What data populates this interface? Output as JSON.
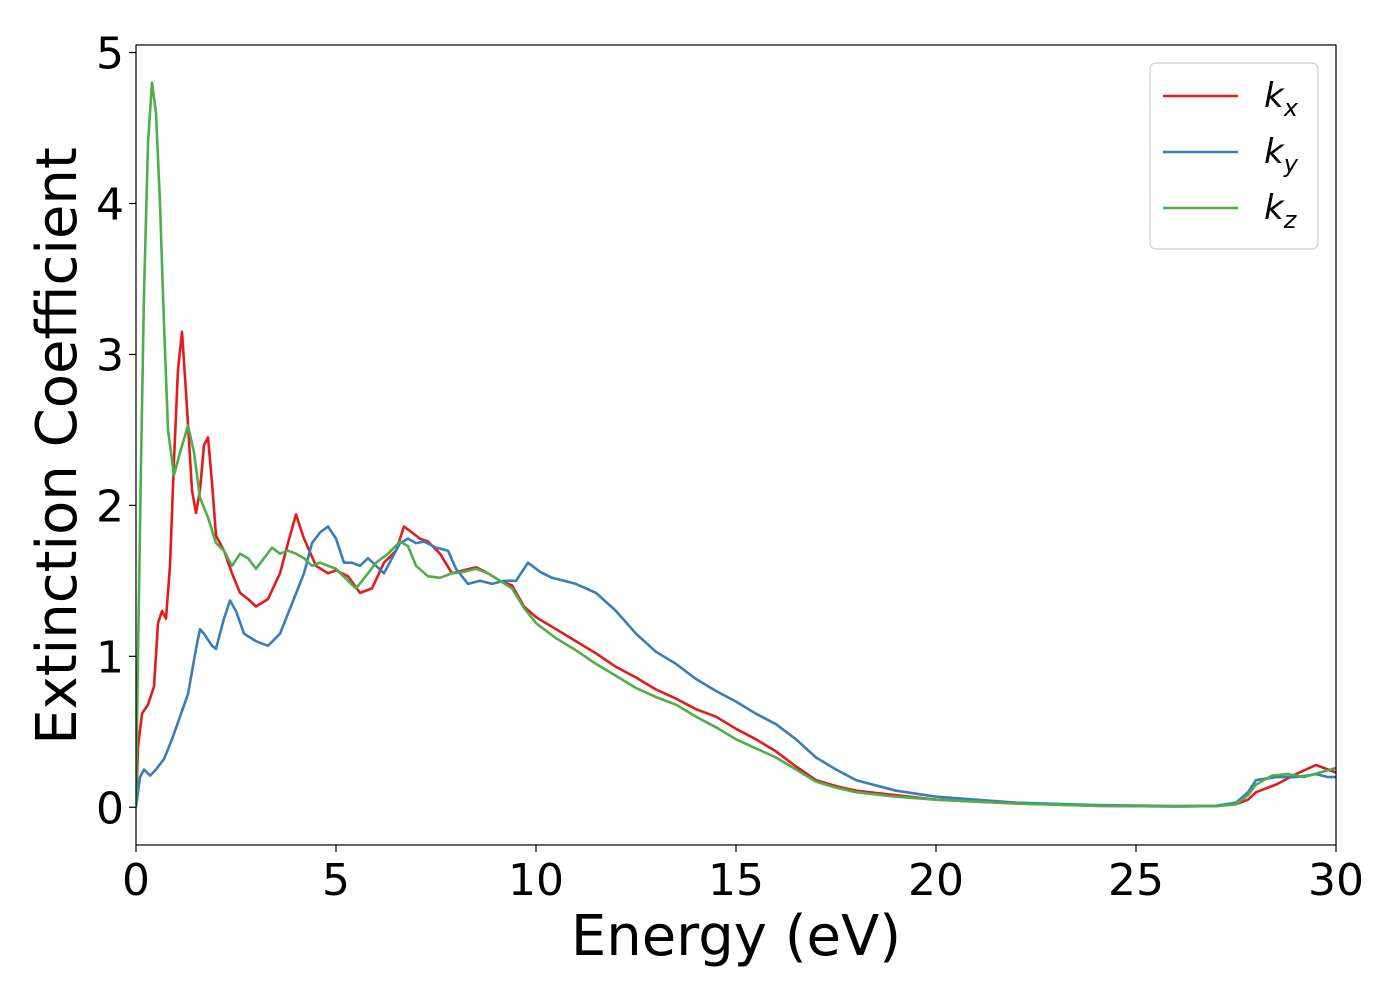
{
  "chart_data": {
    "type": "line",
    "title": "",
    "xlabel": "Energy (eV)",
    "ylabel": "Extinction Coefficient",
    "xlim": [
      0,
      30
    ],
    "ylim": [
      -0.25,
      5.05
    ],
    "xticks": [
      0,
      5,
      10,
      15,
      20,
      25,
      30
    ],
    "yticks": [
      0,
      1,
      2,
      3,
      4,
      5
    ],
    "grid": false,
    "legend_position": "top-right",
    "series": [
      {
        "name": "k",
        "subscript": "x",
        "color": "#e41a1c",
        "points": [
          [
            0,
            0
          ],
          [
            0.05,
            0.4
          ],
          [
            0.15,
            0.62
          ],
          [
            0.3,
            0.68
          ],
          [
            0.45,
            0.8
          ],
          [
            0.55,
            1.22
          ],
          [
            0.65,
            1.3
          ],
          [
            0.75,
            1.25
          ],
          [
            0.85,
            1.6
          ],
          [
            0.95,
            2.3
          ],
          [
            1.05,
            2.9
          ],
          [
            1.15,
            3.15
          ],
          [
            1.25,
            2.75
          ],
          [
            1.4,
            2.1
          ],
          [
            1.5,
            1.95
          ],
          [
            1.6,
            2.1
          ],
          [
            1.7,
            2.4
          ],
          [
            1.8,
            2.45
          ],
          [
            1.9,
            2.15
          ],
          [
            2.0,
            1.8
          ],
          [
            2.2,
            1.7
          ],
          [
            2.4,
            1.55
          ],
          [
            2.6,
            1.42
          ],
          [
            2.8,
            1.38
          ],
          [
            3.0,
            1.33
          ],
          [
            3.3,
            1.38
          ],
          [
            3.6,
            1.55
          ],
          [
            3.8,
            1.75
          ],
          [
            4.0,
            1.94
          ],
          [
            4.2,
            1.78
          ],
          [
            4.5,
            1.6
          ],
          [
            4.8,
            1.55
          ],
          [
            5.0,
            1.57
          ],
          [
            5.3,
            1.53
          ],
          [
            5.6,
            1.42
          ],
          [
            5.9,
            1.45
          ],
          [
            6.2,
            1.62
          ],
          [
            6.5,
            1.7
          ],
          [
            6.7,
            1.86
          ],
          [
            6.9,
            1.82
          ],
          [
            7.1,
            1.78
          ],
          [
            7.3,
            1.76
          ],
          [
            7.6,
            1.68
          ],
          [
            7.9,
            1.55
          ],
          [
            8.2,
            1.57
          ],
          [
            8.5,
            1.59
          ],
          [
            8.8,
            1.55
          ],
          [
            9.1,
            1.5
          ],
          [
            9.4,
            1.47
          ],
          [
            9.7,
            1.33
          ],
          [
            10.0,
            1.26
          ],
          [
            10.5,
            1.18
          ],
          [
            11.0,
            1.1
          ],
          [
            11.5,
            1.02
          ],
          [
            12.0,
            0.93
          ],
          [
            12.5,
            0.86
          ],
          [
            13.0,
            0.78
          ],
          [
            13.5,
            0.72
          ],
          [
            14.0,
            0.65
          ],
          [
            14.5,
            0.6
          ],
          [
            15.0,
            0.52
          ],
          [
            15.5,
            0.45
          ],
          [
            16.0,
            0.37
          ],
          [
            16.5,
            0.27
          ],
          [
            17.0,
            0.18
          ],
          [
            17.5,
            0.14
          ],
          [
            18.0,
            0.11
          ],
          [
            19.0,
            0.08
          ],
          [
            20.0,
            0.05
          ],
          [
            22.0,
            0.025
          ],
          [
            24.0,
            0.01
          ],
          [
            26.0,
            0.005
          ],
          [
            27.0,
            0.008
          ],
          [
            27.5,
            0.02
          ],
          [
            27.8,
            0.05
          ],
          [
            28.0,
            0.1
          ],
          [
            28.5,
            0.15
          ],
          [
            29.0,
            0.22
          ],
          [
            29.5,
            0.28
          ],
          [
            29.8,
            0.25
          ],
          [
            30.0,
            0.23
          ]
        ]
      },
      {
        "name": "k",
        "subscript": "y",
        "color": "#377eb8",
        "points": [
          [
            0,
            0
          ],
          [
            0.1,
            0.2
          ],
          [
            0.2,
            0.25
          ],
          [
            0.35,
            0.21
          ],
          [
            0.5,
            0.25
          ],
          [
            0.7,
            0.32
          ],
          [
            0.9,
            0.45
          ],
          [
            1.1,
            0.6
          ],
          [
            1.3,
            0.75
          ],
          [
            1.5,
            1.05
          ],
          [
            1.6,
            1.18
          ],
          [
            1.7,
            1.15
          ],
          [
            1.9,
            1.07
          ],
          [
            2.0,
            1.05
          ],
          [
            2.2,
            1.25
          ],
          [
            2.35,
            1.37
          ],
          [
            2.5,
            1.3
          ],
          [
            2.7,
            1.15
          ],
          [
            3.0,
            1.1
          ],
          [
            3.3,
            1.07
          ],
          [
            3.6,
            1.15
          ],
          [
            3.9,
            1.35
          ],
          [
            4.2,
            1.55
          ],
          [
            4.4,
            1.75
          ],
          [
            4.6,
            1.82
          ],
          [
            4.8,
            1.86
          ],
          [
            5.0,
            1.78
          ],
          [
            5.2,
            1.62
          ],
          [
            5.4,
            1.62
          ],
          [
            5.6,
            1.6
          ],
          [
            5.8,
            1.65
          ],
          [
            6.0,
            1.6
          ],
          [
            6.2,
            1.55
          ],
          [
            6.4,
            1.65
          ],
          [
            6.6,
            1.75
          ],
          [
            6.8,
            1.78
          ],
          [
            7.0,
            1.75
          ],
          [
            7.2,
            1.76
          ],
          [
            7.5,
            1.72
          ],
          [
            7.8,
            1.7
          ],
          [
            8.0,
            1.58
          ],
          [
            8.3,
            1.48
          ],
          [
            8.6,
            1.5
          ],
          [
            8.9,
            1.48
          ],
          [
            9.2,
            1.5
          ],
          [
            9.5,
            1.5
          ],
          [
            9.8,
            1.62
          ],
          [
            10.1,
            1.56
          ],
          [
            10.4,
            1.52
          ],
          [
            10.7,
            1.5
          ],
          [
            11.0,
            1.48
          ],
          [
            11.5,
            1.42
          ],
          [
            12.0,
            1.3
          ],
          [
            12.5,
            1.15
          ],
          [
            13.0,
            1.03
          ],
          [
            13.5,
            0.95
          ],
          [
            14.0,
            0.85
          ],
          [
            14.5,
            0.77
          ],
          [
            15.0,
            0.7
          ],
          [
            15.5,
            0.62
          ],
          [
            16.0,
            0.55
          ],
          [
            16.5,
            0.45
          ],
          [
            17.0,
            0.33
          ],
          [
            17.5,
            0.25
          ],
          [
            18.0,
            0.18
          ],
          [
            19.0,
            0.11
          ],
          [
            20.0,
            0.07
          ],
          [
            22.0,
            0.03
          ],
          [
            24.0,
            0.015
          ],
          [
            26.0,
            0.008
          ],
          [
            27.0,
            0.01
          ],
          [
            27.5,
            0.03
          ],
          [
            27.8,
            0.1
          ],
          [
            28.0,
            0.18
          ],
          [
            28.5,
            0.2
          ],
          [
            29.0,
            0.2
          ],
          [
            29.5,
            0.22
          ],
          [
            29.8,
            0.2
          ],
          [
            30.0,
            0.2
          ]
        ]
      },
      {
        "name": "k",
        "subscript": "z",
        "color": "#4daf4a",
        "points": [
          [
            0,
            0
          ],
          [
            0.05,
            1.0
          ],
          [
            0.12,
            2.2
          ],
          [
            0.2,
            3.4
          ],
          [
            0.3,
            4.4
          ],
          [
            0.4,
            4.8
          ],
          [
            0.5,
            4.6
          ],
          [
            0.6,
            4.0
          ],
          [
            0.7,
            3.2
          ],
          [
            0.8,
            2.5
          ],
          [
            0.95,
            2.2
          ],
          [
            1.1,
            2.35
          ],
          [
            1.3,
            2.53
          ],
          [
            1.45,
            2.35
          ],
          [
            1.6,
            2.05
          ],
          [
            1.8,
            1.92
          ],
          [
            2.0,
            1.75
          ],
          [
            2.2,
            1.7
          ],
          [
            2.4,
            1.6
          ],
          [
            2.6,
            1.68
          ],
          [
            2.8,
            1.65
          ],
          [
            3.0,
            1.58
          ],
          [
            3.2,
            1.65
          ],
          [
            3.4,
            1.72
          ],
          [
            3.6,
            1.68
          ],
          [
            3.8,
            1.7
          ],
          [
            4.0,
            1.68
          ],
          [
            4.2,
            1.65
          ],
          [
            4.4,
            1.6
          ],
          [
            4.6,
            1.62
          ],
          [
            4.8,
            1.6
          ],
          [
            5.0,
            1.58
          ],
          [
            5.3,
            1.5
          ],
          [
            5.5,
            1.45
          ],
          [
            5.8,
            1.55
          ],
          [
            6.0,
            1.62
          ],
          [
            6.3,
            1.68
          ],
          [
            6.6,
            1.76
          ],
          [
            6.8,
            1.73
          ],
          [
            7.0,
            1.6
          ],
          [
            7.3,
            1.53
          ],
          [
            7.6,
            1.52
          ],
          [
            7.9,
            1.55
          ],
          [
            8.2,
            1.56
          ],
          [
            8.5,
            1.58
          ],
          [
            8.8,
            1.55
          ],
          [
            9.1,
            1.5
          ],
          [
            9.4,
            1.45
          ],
          [
            9.7,
            1.32
          ],
          [
            10.0,
            1.22
          ],
          [
            10.5,
            1.12
          ],
          [
            11.0,
            1.04
          ],
          [
            11.5,
            0.95
          ],
          [
            12.0,
            0.87
          ],
          [
            12.5,
            0.79
          ],
          [
            13.0,
            0.73
          ],
          [
            13.5,
            0.68
          ],
          [
            14.0,
            0.6
          ],
          [
            14.5,
            0.53
          ],
          [
            15.0,
            0.45
          ],
          [
            15.5,
            0.39
          ],
          [
            16.0,
            0.33
          ],
          [
            16.5,
            0.25
          ],
          [
            17.0,
            0.17
          ],
          [
            17.5,
            0.13
          ],
          [
            18.0,
            0.1
          ],
          [
            19.0,
            0.07
          ],
          [
            20.0,
            0.05
          ],
          [
            22.0,
            0.025
          ],
          [
            24.0,
            0.01
          ],
          [
            26.0,
            0.005
          ],
          [
            27.0,
            0.008
          ],
          [
            27.5,
            0.02
          ],
          [
            27.8,
            0.08
          ],
          [
            28.0,
            0.15
          ],
          [
            28.4,
            0.21
          ],
          [
            28.8,
            0.22
          ],
          [
            29.2,
            0.2
          ],
          [
            29.6,
            0.23
          ],
          [
            30.0,
            0.26
          ]
        ]
      }
    ]
  }
}
